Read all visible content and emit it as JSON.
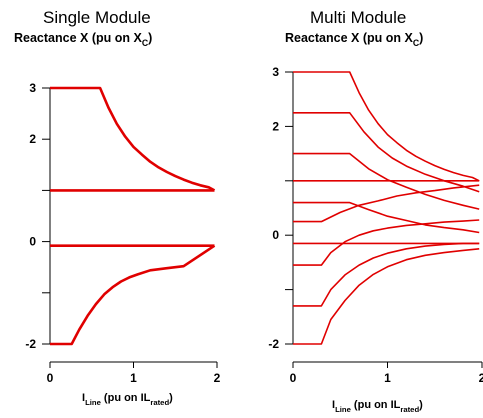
{
  "panels": [
    {
      "title": "Single Module",
      "ylabel_main": "Reactance X (pu on X",
      "ylabel_sub": "C",
      "ylabel_end": ")",
      "xlabel_main": "I",
      "xlabel_sub1": "Line",
      "xlabel_mid": " (pu on IL",
      "xlabel_sub2": "rated",
      "xlabel_end": ")"
    },
    {
      "title": "Multi Module",
      "ylabel_main": "Reactance X (pu on X",
      "ylabel_sub": "C",
      "ylabel_end": ")",
      "xlabel_main": "I",
      "xlabel_sub1": "Line",
      "xlabel_mid": " (pu on IL",
      "xlabel_sub2": "rated",
      "xlabel_end": ")"
    }
  ],
  "colors": {
    "curve": "#e00000",
    "axis": "#000000"
  },
  "chart_data": [
    {
      "type": "line",
      "title": "Single Module",
      "ylabel": "Reactance X (pu on XC)",
      "xlabel": "ILine (pu on ILrated)",
      "xlim": [
        0,
        2
      ],
      "ylim": [
        -2,
        3
      ],
      "xticks": [
        0,
        1,
        2
      ],
      "xtick_labels": [
        "0",
        "1",
        "2"
      ],
      "yticks": [
        -2,
        -1,
        0,
        1,
        2,
        3
      ],
      "ytick_labels": [
        "-2",
        "",
        "0",
        "",
        "2",
        "3"
      ],
      "series": [
        {
          "x": [
            0,
            0.6,
            0.7,
            0.8,
            0.9,
            1.0,
            1.1,
            1.2,
            1.3,
            1.4,
            1.5,
            1.6,
            1.7,
            1.8,
            1.9,
            1.97
          ],
          "y": [
            3.0,
            3.0,
            2.62,
            2.3,
            2.05,
            1.85,
            1.7,
            1.56,
            1.45,
            1.36,
            1.28,
            1.21,
            1.15,
            1.1,
            1.06,
            1.0
          ]
        },
        {
          "x": [
            0,
            1.97
          ],
          "y": [
            1.0,
            1.0
          ]
        },
        {
          "x": [
            0,
            1.97
          ],
          "y": [
            -0.08,
            -0.08
          ]
        },
        {
          "x": [
            0,
            0.26,
            0.35,
            0.45,
            0.55,
            0.65,
            0.75,
            0.85,
            0.95,
            1.05,
            1.2,
            1.4,
            1.6,
            1.97
          ],
          "y": [
            -2.0,
            -2.0,
            -1.72,
            -1.45,
            -1.22,
            -1.03,
            -0.89,
            -0.78,
            -0.7,
            -0.64,
            -0.56,
            -0.52,
            -0.48,
            -0.08
          ]
        }
      ]
    },
    {
      "type": "line",
      "title": "Multi Module",
      "ylabel": "Reactance X (pu on XC)",
      "xlabel": "ILine (pu on ILrated)",
      "xlim": [
        0,
        2
      ],
      "ylim": [
        -2,
        3
      ],
      "xticks": [
        0,
        1,
        2
      ],
      "xtick_labels": [
        "0",
        "1",
        "2"
      ],
      "yticks": [
        -2,
        -1,
        0,
        1,
        2,
        3
      ],
      "ytick_labels": [
        "-2",
        "",
        "0",
        "",
        "2",
        "3"
      ],
      "series": [
        {
          "x": [
            0,
            0.6,
            0.7,
            0.8,
            0.9,
            1.0,
            1.1,
            1.2,
            1.3,
            1.4,
            1.5,
            1.6,
            1.7,
            1.8,
            1.9,
            1.97
          ],
          "y": [
            3.0,
            3.0,
            2.62,
            2.3,
            2.05,
            1.85,
            1.7,
            1.56,
            1.45,
            1.36,
            1.28,
            1.21,
            1.15,
            1.1,
            1.06,
            1.0
          ]
        },
        {
          "x": [
            0,
            0.6,
            0.75,
            0.9,
            1.05,
            1.2,
            1.4,
            1.6,
            1.8,
            1.97
          ],
          "y": [
            2.25,
            2.25,
            1.9,
            1.62,
            1.42,
            1.27,
            1.12,
            1.0,
            0.9,
            0.8
          ]
        },
        {
          "x": [
            0,
            0.6,
            0.8,
            1.0,
            1.2,
            1.4,
            1.6,
            1.8,
            1.97
          ],
          "y": [
            1.5,
            1.5,
            1.22,
            1.02,
            0.88,
            0.75,
            0.64,
            0.55,
            0.48
          ]
        },
        {
          "x": [
            0,
            1.97
          ],
          "y": [
            1.0,
            1.0
          ]
        },
        {
          "x": [
            0,
            0.6,
            0.8,
            1.0,
            1.2,
            1.4,
            1.6,
            1.8,
            1.97
          ],
          "y": [
            0.6,
            0.6,
            0.47,
            0.35,
            0.27,
            0.19,
            0.14,
            0.1,
            0.05
          ]
        },
        {
          "x": [
            0,
            0.3,
            0.5,
            0.7,
            0.9,
            1.1,
            1.3,
            1.5,
            1.7,
            1.97
          ],
          "y": [
            0.25,
            0.25,
            0.42,
            0.55,
            0.63,
            0.72,
            0.78,
            0.82,
            0.87,
            0.92
          ]
        },
        {
          "x": [
            0,
            1.97
          ],
          "y": [
            -0.15,
            -0.15
          ]
        },
        {
          "x": [
            0,
            0.3,
            0.4,
            0.55,
            0.7,
            0.85,
            1.0,
            1.2,
            1.4,
            1.6,
            1.8,
            1.97
          ],
          "y": [
            -0.55,
            -0.55,
            -0.32,
            -0.12,
            0.0,
            0.08,
            0.13,
            0.18,
            0.21,
            0.24,
            0.26,
            0.28
          ]
        },
        {
          "x": [
            0,
            0.3,
            0.4,
            0.55,
            0.7,
            0.85,
            1.0,
            1.2,
            1.4,
            1.6,
            1.8,
            1.97
          ],
          "y": [
            -1.3,
            -1.3,
            -1.0,
            -0.73,
            -0.55,
            -0.42,
            -0.33,
            -0.25,
            -0.2,
            -0.17,
            -0.15,
            -0.15
          ]
        },
        {
          "x": [
            0,
            0.3,
            0.4,
            0.55,
            0.7,
            0.85,
            1.0,
            1.2,
            1.4,
            1.6,
            1.8,
            1.97
          ],
          "y": [
            -2.0,
            -2.0,
            -1.55,
            -1.2,
            -0.92,
            -0.72,
            -0.58,
            -0.45,
            -0.37,
            -0.32,
            -0.28,
            -0.25
          ]
        }
      ]
    }
  ]
}
